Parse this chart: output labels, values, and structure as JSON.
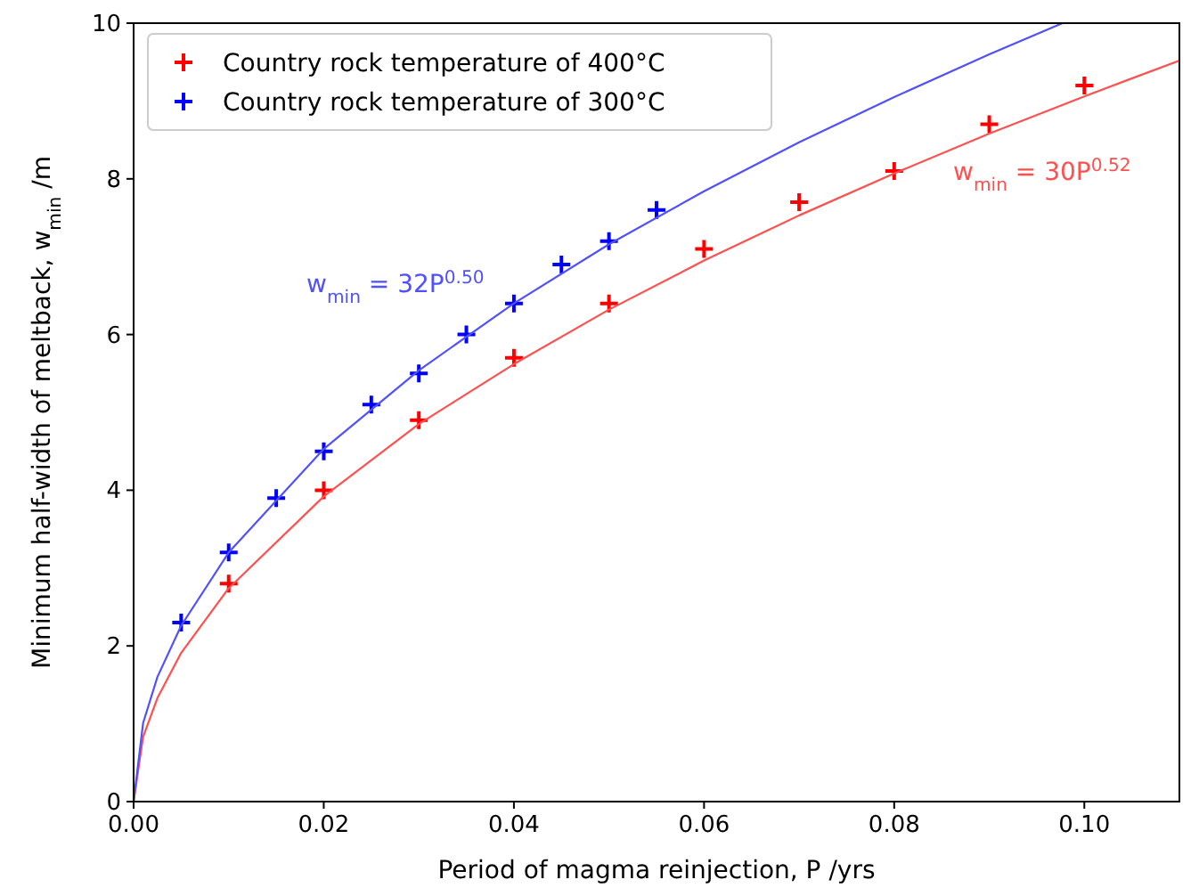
{
  "chart_data": {
    "type": "scatter",
    "xlabel": "Period of magma reinjection, P /yrs",
    "ylabel": "Minimum half-width of meltback, w$_{min}$ /m",
    "xlim": [
      0,
      0.11
    ],
    "ylim": [
      0,
      10
    ],
    "xticks": [
      {
        "value": 0,
        "label": "0.00"
      },
      {
        "value": 0.02,
        "label": "0.02"
      },
      {
        "value": 0.04,
        "label": "0.04"
      },
      {
        "value": 0.06,
        "label": "0.06"
      },
      {
        "value": 0.08,
        "label": "0.08"
      },
      {
        "value": 0.1,
        "label": "0.10"
      }
    ],
    "yticks": [
      0,
      2,
      4,
      6,
      8,
      10
    ],
    "grid": false,
    "legend": "top left",
    "marker": "cross",
    "series": [
      {
        "name": "Country rock temperature of 400°C",
        "color": "#ff0000",
        "x": [
          0.01,
          0.02,
          0.03,
          0.04,
          0.05,
          0.06,
          0.07,
          0.08,
          0.09,
          0.1
        ],
        "values": [
          2.8,
          4.0,
          4.9,
          5.7,
          6.4,
          7.1,
          7.7,
          8.1,
          8.7,
          9.2
        ]
      },
      {
        "name": "Country rock temperature of 300°C",
        "color": "#0000ff",
        "x": [
          0.005,
          0.01,
          0.015,
          0.02,
          0.025,
          0.03,
          0.035,
          0.04,
          0.045,
          0.05,
          0.055
        ],
        "values": [
          2.3,
          3.2,
          3.9,
          4.5,
          5.1,
          5.5,
          6.0,
          6.4,
          6.9,
          7.2,
          7.6
        ]
      },
      {
        "color": "#ff5050",
        "type": "line",
        "marker": "none",
        "x": [
          0,
          0.001,
          0.0025,
          0.005,
          0.01,
          0.02,
          0.03,
          0.04,
          0.05,
          0.06,
          0.07,
          0.08,
          0.09,
          0.1,
          0.11
        ],
        "values": [
          0,
          0.83,
          1.33,
          1.91,
          2.74,
          3.92,
          4.85,
          5.62,
          6.32,
          6.95,
          7.53,
          8.07,
          8.58,
          9.06,
          9.52
        ]
      },
      {
        "color": "#5050ff",
        "type": "line",
        "marker": "none",
        "x": [
          0,
          0.001,
          0.0025,
          0.005,
          0.01,
          0.02,
          0.03,
          0.04,
          0.05,
          0.06,
          0.07,
          0.08,
          0.09,
          0.0977
        ],
        "values": [
          0,
          1.01,
          1.6,
          2.26,
          3.2,
          4.53,
          5.54,
          6.4,
          7.16,
          7.84,
          8.47,
          9.05,
          9.6,
          10
        ]
      }
    ],
    "annotations": [
      "w$_{min}$ = 30P$^{0.52}$",
      "w$_{min}$ = 32P$^{0.50}$"
    ]
  }
}
